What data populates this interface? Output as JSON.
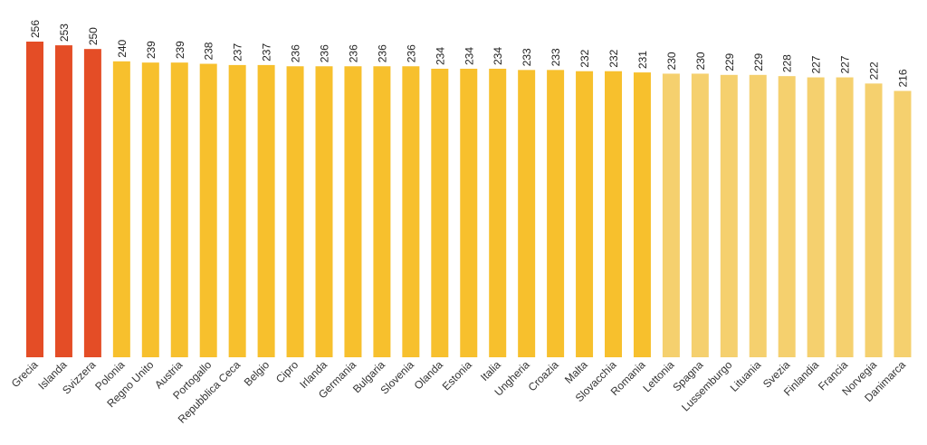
{
  "chart_data": {
    "type": "bar",
    "categories": [
      "Grecia",
      "Islanda",
      "Svizzera",
      "Polonia",
      "Regno Unito",
      "Austria",
      "Portogallo",
      "Repubblica Ceca",
      "Belgio",
      "Cipro",
      "Irlanda",
      "Germania",
      "Bulgaria",
      "Slovenia",
      "Olanda",
      "Estonia",
      "Italia",
      "Ungheria",
      "Croazia",
      "Malta",
      "Slovacchia",
      "Romania",
      "Lettonia",
      "Spagna",
      "Lussemburgo",
      "Lituania",
      "Svezia",
      "Finlandia",
      "Francia",
      "Norvegia",
      "Danimarca"
    ],
    "values": [
      256,
      253,
      250,
      240,
      239,
      239,
      238,
      237,
      237,
      236,
      236,
      236,
      236,
      236,
      234,
      234,
      234,
      233,
      233,
      232,
      232,
      231,
      230,
      230,
      229,
      229,
      228,
      227,
      227,
      222,
      216
    ],
    "bar_colors": [
      "#e44d26",
      "#e44d26",
      "#e44d26",
      "#f7c02d",
      "#f7c02d",
      "#f7c02d",
      "#f7c02d",
      "#f7c02d",
      "#f7c02d",
      "#f7c02d",
      "#f7c02d",
      "#f7c02d",
      "#f7c02d",
      "#f7c02d",
      "#f7c02d",
      "#f7c02d",
      "#f7c02d",
      "#f7c02d",
      "#f7c02d",
      "#f7c02d",
      "#f7c02d",
      "#f7c02d",
      "#f5d06e",
      "#f5d06e",
      "#f5d06e",
      "#f5d06e",
      "#f5d06e",
      "#f5d06e",
      "#f5d06e",
      "#f5d06e",
      "#f5d06e"
    ],
    "title": "",
    "xlabel": "",
    "ylabel": "",
    "ylim": [
      0,
      256
    ],
    "grid": false,
    "legend": "none"
  }
}
